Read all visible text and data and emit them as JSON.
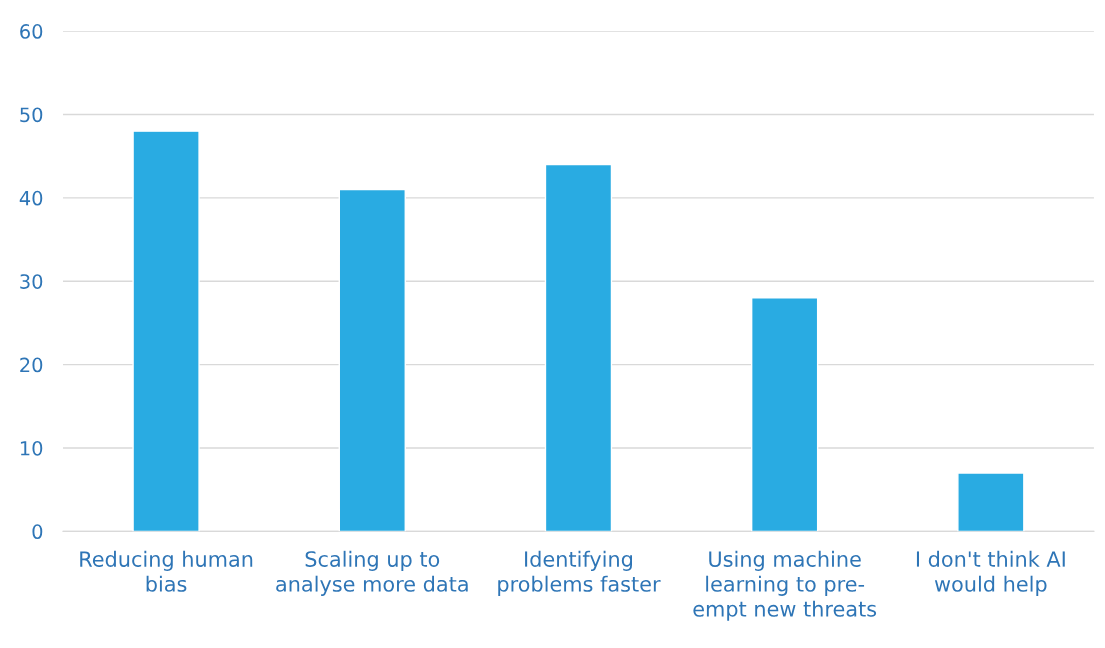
{
  "chart_data": {
    "type": "bar",
    "categories": [
      "Reducing human\nbias",
      "Scaling up to\nanalyse more data",
      "Identifying\nproblems faster",
      "Using machine\nlearning to pre-\nempt new threats",
      "I don't think AI\nwould help"
    ],
    "values": [
      48,
      41,
      44,
      28,
      7
    ],
    "color": "#29abe2",
    "ylim": [
      0,
      60
    ],
    "yticks": [
      0,
      10,
      20,
      30,
      40,
      50,
      60
    ],
    "grid": "y"
  }
}
